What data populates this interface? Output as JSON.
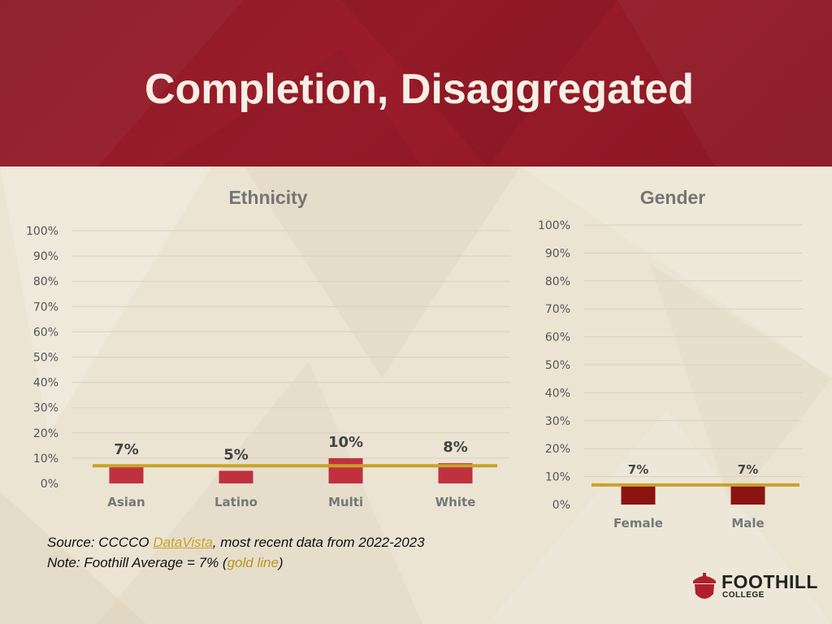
{
  "slide": {
    "title": "Completion, Disaggregated"
  },
  "colors": {
    "header": "#951b29",
    "bar_ethnicity": "#c0313f",
    "bar_gender": "#8b1410",
    "average_line": "#c9a227",
    "axis_text": "#555555"
  },
  "chart_data": [
    {
      "type": "bar",
      "title": "Ethnicity",
      "categories": [
        "Asian",
        "Latino",
        "Multi",
        "White"
      ],
      "values": [
        7,
        5,
        10,
        8
      ],
      "data_labels": [
        "7%",
        "5%",
        "10%",
        "8%"
      ],
      "average": 7,
      "ylim": [
        0,
        100
      ],
      "yticks": [
        "0%",
        "10%",
        "20%",
        "30%",
        "40%",
        "50%",
        "60%",
        "70%",
        "80%",
        "90%",
        "100%"
      ],
      "grid": true,
      "legend": "none"
    },
    {
      "type": "bar",
      "title": "Gender",
      "categories": [
        "Female",
        "Male"
      ],
      "values": [
        7,
        7
      ],
      "data_labels": [
        "7%",
        "7%"
      ],
      "average": 7,
      "ylim": [
        0,
        100
      ],
      "yticks": [
        "0%",
        "10%",
        "20%",
        "30%",
        "40%",
        "50%",
        "60%",
        "70%",
        "80%",
        "90%",
        "100%"
      ],
      "grid": true,
      "legend": "none"
    }
  ],
  "footnote": {
    "source_prefix": "Source: CCCCO ",
    "source_link": "DataVista",
    "source_suffix": ", most recent data from 2022-2023",
    "note_prefix": "Note: Foothill Average = 7% (",
    "note_gold": "gold line",
    "note_suffix": ")"
  },
  "logo": {
    "name": "FOOTHILL",
    "sub": "COLLEGE"
  }
}
